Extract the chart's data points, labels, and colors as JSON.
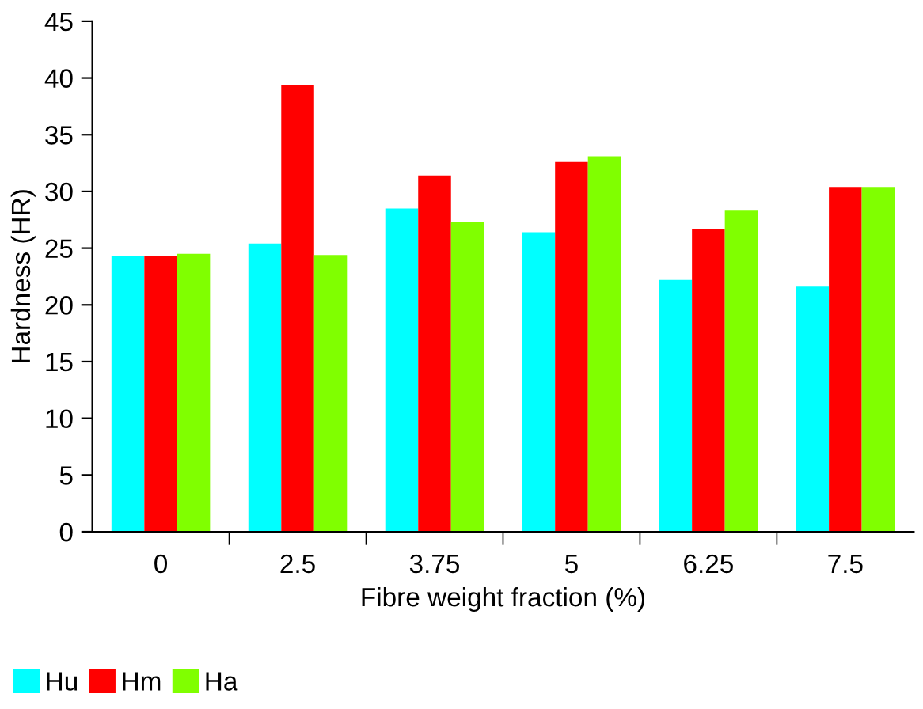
{
  "chart_data": {
    "type": "bar",
    "xlabel": "Fibre weight fraction (%)",
    "ylabel": "Hardness (HR)",
    "categories": [
      "0",
      "2.5",
      "3.75",
      "5",
      "6.25",
      "7.5"
    ],
    "series": [
      {
        "name": "Hu",
        "color": "#00ffff",
        "values": [
          24.3,
          25.4,
          28.5,
          26.4,
          22.2,
          21.6
        ]
      },
      {
        "name": "Hm",
        "color": "#ff0000",
        "values": [
          24.3,
          39.4,
          31.4,
          32.6,
          26.7,
          30.4
        ]
      },
      {
        "name": "Ha",
        "color": "#80ff00",
        "values": [
          24.5,
          24.4,
          27.3,
          33.1,
          28.3,
          30.4
        ]
      }
    ],
    "ylim": [
      0,
      45
    ],
    "yticks": [
      0,
      5,
      10,
      15,
      20,
      25,
      30,
      35,
      40,
      45
    ],
    "grid": false,
    "legend": "bottom left"
  }
}
